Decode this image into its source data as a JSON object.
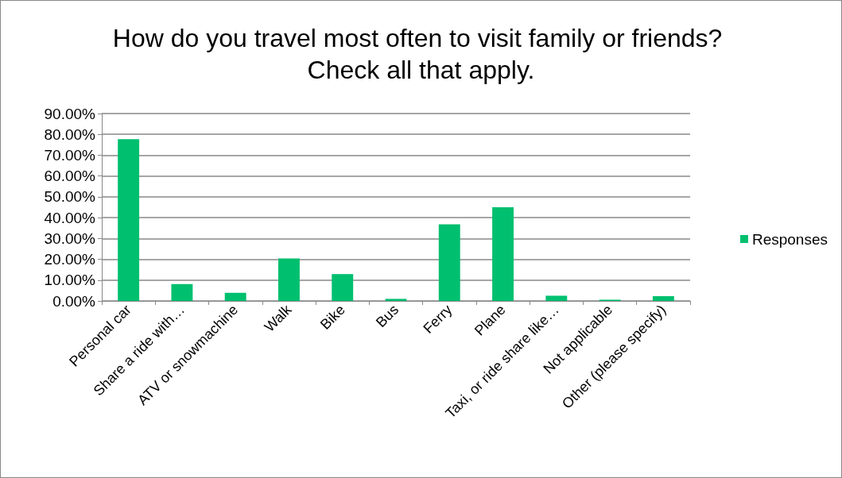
{
  "chart_data": {
    "type": "bar",
    "title": "How do you travel most often to visit family or friends? Check all that apply.",
    "categories": [
      "Personal car",
      "Share a ride with…",
      "ATV or snowmachine",
      "Walk",
      "Bike",
      "Bus",
      "Ferry",
      "Plane",
      "Taxi, or ride share like…",
      "Not applicable",
      "Other (please specify)"
    ],
    "series": [
      {
        "name": "Responses",
        "color": "#00bf6f",
        "values": [
          77.7,
          8.1,
          3.9,
          20.4,
          12.9,
          1.0,
          36.8,
          45.0,
          2.5,
          0.6,
          2.3
        ]
      }
    ],
    "ylim": [
      0,
      90
    ],
    "yticks": [
      {
        "value": 0,
        "label": "0.00%"
      },
      {
        "value": 10,
        "label": "10.00%"
      },
      {
        "value": 20,
        "label": "20.00%"
      },
      {
        "value": 30,
        "label": "30.00%"
      },
      {
        "value": 40,
        "label": "40.00%"
      },
      {
        "value": 50,
        "label": "50.00%"
      },
      {
        "value": 60,
        "label": "60.00%"
      },
      {
        "value": 70,
        "label": "70.00%"
      },
      {
        "value": 80,
        "label": "80.00%"
      },
      {
        "value": 90,
        "label": "90.00%"
      }
    ],
    "grid": "y",
    "legend": "right"
  }
}
